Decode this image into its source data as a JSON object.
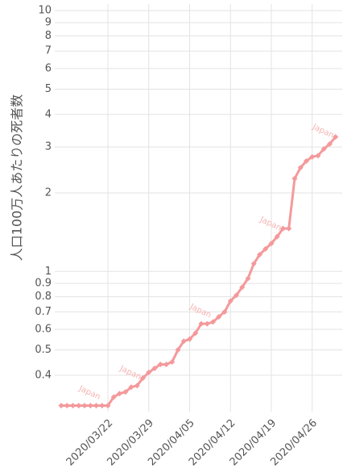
{
  "chart_data": {
    "type": "line",
    "y_label": "人口100万人あたりの死者数",
    "log_y": true,
    "grid": true,
    "x": [
      "2020/03/14",
      "2020/03/15",
      "2020/03/16",
      "2020/03/17",
      "2020/03/18",
      "2020/03/19",
      "2020/03/20",
      "2020/03/21",
      "2020/03/22",
      "2020/03/23",
      "2020/03/24",
      "2020/03/25",
      "2020/03/26",
      "2020/03/27",
      "2020/03/28",
      "2020/03/29",
      "2020/03/30",
      "2020/03/31",
      "2020/04/01",
      "2020/04/02",
      "2020/04/03",
      "2020/04/04",
      "2020/04/05",
      "2020/04/06",
      "2020/04/07",
      "2020/04/08",
      "2020/04/09",
      "2020/04/10",
      "2020/04/11",
      "2020/04/12",
      "2020/04/13",
      "2020/04/14",
      "2020/04/15",
      "2020/04/16",
      "2020/04/17",
      "2020/04/18",
      "2020/04/19",
      "2020/04/20",
      "2020/04/21",
      "2020/04/22",
      "2020/04/23",
      "2020/04/24",
      "2020/04/25",
      "2020/04/26",
      "2020/04/27",
      "2020/04/28",
      "2020/04/29",
      "2020/04/30"
    ],
    "xticks": [
      "2020/03/22",
      "2020/03/29",
      "2020/04/05",
      "2020/04/12",
      "2020/04/19",
      "2020/04/26"
    ],
    "series": [
      {
        "name": "Japan",
        "color": "#f4999b",
        "values": [
          0.306,
          0.306,
          0.306,
          0.306,
          0.306,
          0.306,
          0.306,
          0.306,
          0.306,
          0.33,
          0.34,
          0.345,
          0.36,
          0.365,
          0.39,
          0.41,
          0.425,
          0.44,
          0.44,
          0.45,
          0.5,
          0.54,
          0.55,
          0.58,
          0.63,
          0.63,
          0.64,
          0.67,
          0.7,
          0.77,
          0.81,
          0.87,
          0.94,
          1.07,
          1.16,
          1.22,
          1.28,
          1.36,
          1.46,
          1.46,
          2.27,
          2.5,
          2.65,
          2.75,
          2.78,
          2.95,
          3.08,
          3.28
        ]
      }
    ],
    "ylim": [
      0.29,
      10.6
    ],
    "yticks": [
      0.4,
      0.5,
      0.6,
      0.7,
      0.8,
      0.9,
      1,
      2,
      3,
      4,
      5,
      6,
      7,
      8,
      9,
      10
    ]
  }
}
